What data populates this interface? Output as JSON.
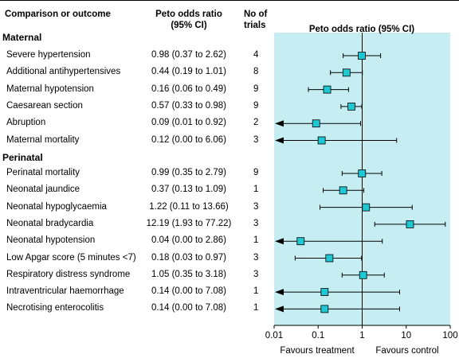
{
  "headers": {
    "outcome": "Comparison or outcome",
    "peto_col_line1": "Peto odds ratio",
    "peto_col_line2": "(95% CI)",
    "trials_line1": "No of",
    "trials_line2": "trials",
    "plot_title": "Peto odds ratio (95% CI)"
  },
  "footer": {
    "favours_left": "Favours treatment",
    "favours_right": "Favours control"
  },
  "colors": {
    "plot_background": "#c6eef2",
    "marker_fill": "#1ec8d2",
    "line": "#000000"
  },
  "chart_data": {
    "type": "forest",
    "x_scale": "log",
    "xlim": [
      0.01,
      100
    ],
    "x_ticks": [
      "0.01",
      "0.1",
      "1",
      "10",
      "100"
    ],
    "reference_line": 1,
    "sections": [
      {
        "name": "Maternal",
        "rows": [
          {
            "label": "Severe hypertension",
            "ci_text": "0.98 (0.37 to 2.62)",
            "trials": "4",
            "or": 0.98,
            "lo": 0.37,
            "hi": 2.62
          },
          {
            "label": "Additional antihypertensives",
            "ci_text": "0.44 (0.19 to 1.01)",
            "trials": "8",
            "or": 0.44,
            "lo": 0.19,
            "hi": 1.01
          },
          {
            "label": "Maternal hypotension",
            "ci_text": "0.16 (0.06 to 0.49)",
            "trials": "9",
            "or": 0.16,
            "lo": 0.06,
            "hi": 0.49
          },
          {
            "label": "Caesarean section",
            "ci_text": "0.57 (0.33 to 0.98)",
            "trials": "9",
            "or": 0.57,
            "lo": 0.33,
            "hi": 0.98
          },
          {
            "label": "Abruption",
            "ci_text": "0.09 (0.01 to 0.92)",
            "trials": "2",
            "or": 0.09,
            "lo": 0.01,
            "hi": 0.92
          },
          {
            "label": "Maternal mortality",
            "ci_text": "0.12 (0.00 to 6.06)",
            "trials": "3",
            "or": 0.12,
            "lo": 0.0,
            "hi": 6.06
          }
        ]
      },
      {
        "name": "Perinatal",
        "rows": [
          {
            "label": "Perinatal mortality",
            "ci_text": "0.99 (0.35 to 2.79)",
            "trials": "9",
            "or": 0.99,
            "lo": 0.35,
            "hi": 2.79
          },
          {
            "label": "Neonatal jaundice",
            "ci_text": "0.37 (0.13 to 1.09)",
            "trials": "1",
            "or": 0.37,
            "lo": 0.13,
            "hi": 1.09
          },
          {
            "label": "Neonatal hypoglycaemia",
            "ci_text": "1.22 (0.11 to 13.66)",
            "trials": "3",
            "or": 1.22,
            "lo": 0.11,
            "hi": 13.66
          },
          {
            "label": "Neonatal bradycardia",
            "ci_text": "12.19 (1.93 to 77.22)",
            "trials": "3",
            "or": 12.19,
            "lo": 1.93,
            "hi": 77.22
          },
          {
            "label": "Neonatal hypotension",
            "ci_text": "0.04 (0.00 to 2.86)",
            "trials": "1",
            "or": 0.04,
            "lo": 0.0,
            "hi": 2.86
          },
          {
            "label": "Low Apgar score (5 minutes <7)",
            "ci_text": "0.18 (0.03 to 0.97)",
            "trials": "3",
            "or": 0.18,
            "lo": 0.03,
            "hi": 0.97
          },
          {
            "label": "Respiratory distress syndrome",
            "ci_text": "1.05 (0.35 to 3.18)",
            "trials": "3",
            "or": 1.05,
            "lo": 0.35,
            "hi": 3.18
          },
          {
            "label": "Intraventricular haemorrhage",
            "ci_text": "0.14 (0.00 to 7.08)",
            "trials": "1",
            "or": 0.14,
            "lo": 0.0,
            "hi": 7.08
          },
          {
            "label": "Necrotising enterocolitis",
            "ci_text": "0.14 (0.00 to 7.08)",
            "trials": "1",
            "or": 0.14,
            "lo": 0.0,
            "hi": 7.08
          }
        ]
      }
    ]
  }
}
